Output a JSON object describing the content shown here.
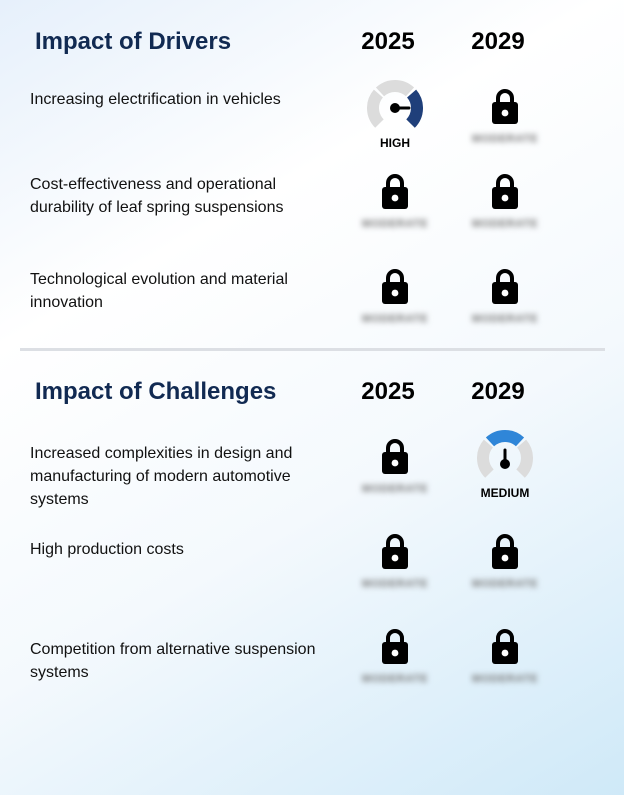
{
  "drivers": {
    "title": "Impact of Drivers",
    "year_1": "2025",
    "year_2": "2029",
    "rows": [
      {
        "label": "Increasing electrification in vehicles",
        "y2025": {
          "kind": "gauge",
          "level": "high",
          "label": "HIGH"
        },
        "y2029": {
          "kind": "locked",
          "hidden_label": "MODERATE"
        }
      },
      {
        "label": "Cost-effectiveness and operational durability of leaf spring suspensions",
        "y2025": {
          "kind": "locked",
          "hidden_label": "MODERATE"
        },
        "y2029": {
          "kind": "locked",
          "hidden_label": "MODERATE"
        }
      },
      {
        "label": "Technological evolution and material innovation",
        "y2025": {
          "kind": "locked",
          "hidden_label": "MODERATE"
        },
        "y2029": {
          "kind": "locked",
          "hidden_label": "MODERATE"
        }
      }
    ]
  },
  "challenges": {
    "title": "Impact of Challenges",
    "year_1": "2025",
    "year_2": "2029",
    "rows": [
      {
        "label": "Increased complexities in design and manufacturing of modern automotive systems",
        "y2025": {
          "kind": "locked",
          "hidden_label": "MODERATE"
        },
        "y2029": {
          "kind": "gauge",
          "level": "medium",
          "label": "MEDIUM"
        }
      },
      {
        "label": "High production costs",
        "y2025": {
          "kind": "locked",
          "hidden_label": "MODERATE"
        },
        "y2029": {
          "kind": "locked",
          "hidden_label": "MODERATE"
        }
      },
      {
        "label": "Competition from alternative suspension systems",
        "y2025": {
          "kind": "locked",
          "hidden_label": "MODERATE"
        },
        "y2029": {
          "kind": "locked",
          "hidden_label": "MODERATE"
        }
      }
    ]
  },
  "colors": {
    "title": "#112a52",
    "gauge_track": "#dcdcdc",
    "gauge_high": "#1f3f7a",
    "gauge_medium": "#2f86d8",
    "lock": "#000000"
  },
  "icons": {
    "lock": "lock-icon",
    "gauge": "gauge-icon"
  }
}
